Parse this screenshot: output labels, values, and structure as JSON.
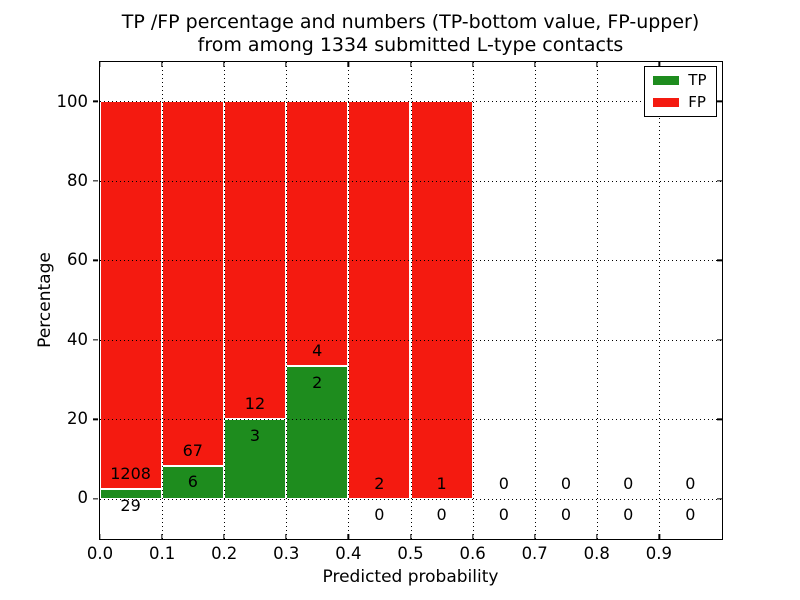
{
  "figure": {
    "title_line1": "TP /FP percentage and numbers (TP-bottom value, FP-upper)",
    "title_line2": "from among 1334 submitted L-type contacts",
    "xlabel": "Predicted probability",
    "ylabel": "Percentage"
  },
  "legend": {
    "position": "upper right",
    "entries": [
      {
        "label": "TP",
        "color": "#1e8c1e"
      },
      {
        "label": "FP",
        "color": "#f41a10"
      }
    ]
  },
  "chart_data": {
    "type": "bar",
    "stacked": true,
    "title": "TP /FP percentage and numbers (TP-bottom value, FP-upper)\nfrom among 1334 submitted L-type contacts",
    "xlabel": "Predicted probability",
    "ylabel": "Percentage",
    "total_contacts": 1334,
    "grid": true,
    "grid_style": "dotted",
    "legend_position": "upper right",
    "xlim": [
      0.0,
      1.0
    ],
    "ylim": [
      -10,
      110
    ],
    "x_ticks": [
      "0.0",
      "0.1",
      "0.2",
      "0.3",
      "0.4",
      "0.5",
      "0.6",
      "0.7",
      "0.8",
      "0.9"
    ],
    "y_ticks": [
      0,
      20,
      40,
      60,
      80,
      100
    ],
    "colors": {
      "tp": "#1e8c1e",
      "fp": "#f41a10",
      "bar_edge": "#ffffff"
    },
    "series_note": "bars stacked to 100%: TP percentage on bottom (green), FP percentage on top (red); numeric annotations show raw counts (TP below green top, FP above green top)",
    "bins": [
      {
        "x_start": 0.0,
        "x_end": 0.1,
        "tp": 29,
        "fp": 1208
      },
      {
        "x_start": 0.1,
        "x_end": 0.2,
        "tp": 6,
        "fp": 67
      },
      {
        "x_start": 0.2,
        "x_end": 0.3,
        "tp": 3,
        "fp": 12
      },
      {
        "x_start": 0.3,
        "x_end": 0.4,
        "tp": 2,
        "fp": 4
      },
      {
        "x_start": 0.4,
        "x_end": 0.5,
        "tp": 0,
        "fp": 2
      },
      {
        "x_start": 0.5,
        "x_end": 0.6,
        "tp": 0,
        "fp": 1
      },
      {
        "x_start": 0.6,
        "x_end": 0.7,
        "tp": 0,
        "fp": 0
      },
      {
        "x_start": 0.7,
        "x_end": 0.8,
        "tp": 0,
        "fp": 0
      },
      {
        "x_start": 0.8,
        "x_end": 0.9,
        "tp": 0,
        "fp": 0
      },
      {
        "x_start": 0.9,
        "x_end": 1.0,
        "tp": 0,
        "fp": 0
      }
    ]
  }
}
